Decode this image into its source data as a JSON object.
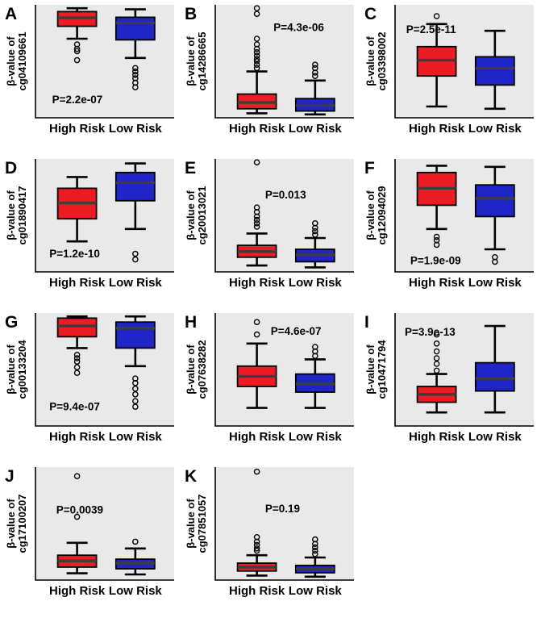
{
  "figure": {
    "background": "#ffffff",
    "panel_background": "#e9e9e9"
  },
  "colors": {
    "high_risk": "#EB1C24",
    "low_risk": "#2025C8",
    "median_line": "#3d3d3d",
    "box_stroke": "#000000",
    "text": "#000000"
  },
  "groups": [
    "High Risk",
    "Low Risk"
  ],
  "chart_data": [
    {
      "type": "boxplot",
      "letter": "A",
      "ylabel_line1": "β-value of",
      "ylabel_line2": "cg04109661",
      "p_label": "P=2.2e-07",
      "p_pos": {
        "x": 0.12,
        "y": 0.8
      },
      "ylim": [
        0,
        1
      ],
      "categories": [
        "High Risk",
        "Low Risk"
      ],
      "series": [
        {
          "name": "High Risk",
          "min": 0.7,
          "q1": 0.81,
          "median": 0.885,
          "q3": 0.94,
          "max": 0.97,
          "outliers": [
            0.65,
            0.61,
            0.59,
            0.51
          ]
        },
        {
          "name": "Low Risk",
          "min": 0.53,
          "q1": 0.69,
          "median": 0.84,
          "q3": 0.89,
          "max": 0.96,
          "outliers": [
            0.44,
            0.41,
            0.38,
            0.35,
            0.31,
            0.27
          ]
        }
      ]
    },
    {
      "type": "boxplot",
      "letter": "B",
      "ylabel_line1": "β-value of",
      "ylabel_line2": "cg14286665",
      "p_label": "P=4.3e-06",
      "p_pos": {
        "x": 0.42,
        "y": 0.16
      },
      "ylim": [
        0,
        1
      ],
      "categories": [
        "High Risk",
        "Low Risk"
      ],
      "series": [
        {
          "name": "High Risk",
          "min": 0.04,
          "q1": 0.08,
          "median": 0.135,
          "q3": 0.21,
          "max": 0.41,
          "outliers": [
            0.44,
            0.47,
            0.5,
            0.52,
            0.55,
            0.58,
            0.61,
            0.65,
            0.7,
            0.92,
            0.97
          ]
        },
        {
          "name": "Low Risk",
          "min": 0.03,
          "q1": 0.06,
          "median": 0.11,
          "q3": 0.17,
          "max": 0.33,
          "outliers": [
            0.37,
            0.4,
            0.44,
            0.47
          ]
        }
      ]
    },
    {
      "type": "boxplot",
      "letter": "C",
      "ylabel_line1": "β-value of",
      "ylabel_line2": "cg03398002",
      "p_label": "P=2.5e-11",
      "p_pos": {
        "x": 0.08,
        "y": 0.18
      },
      "ylim": [
        0,
        1
      ],
      "categories": [
        "High Risk",
        "Low Risk"
      ],
      "series": [
        {
          "name": "High Risk",
          "min": 0.1,
          "q1": 0.37,
          "median": 0.51,
          "q3": 0.63,
          "max": 0.83,
          "outliers": [
            0.9
          ]
        },
        {
          "name": "Low Risk",
          "min": 0.08,
          "q1": 0.29,
          "median": 0.44,
          "q3": 0.54,
          "max": 0.77,
          "outliers": []
        }
      ]
    },
    {
      "type": "boxplot",
      "letter": "D",
      "ylabel_line1": "β-value of",
      "ylabel_line2": "cg01890417",
      "p_label": "P=1.2e-10",
      "p_pos": {
        "x": 0.1,
        "y": 0.8
      },
      "ylim": [
        0,
        1
      ],
      "categories": [
        "High Risk",
        "Low Risk"
      ],
      "series": [
        {
          "name": "High Risk",
          "min": 0.27,
          "q1": 0.47,
          "median": 0.61,
          "q3": 0.74,
          "max": 0.84,
          "outliers": []
        },
        {
          "name": "Low Risk",
          "min": 0.38,
          "q1": 0.63,
          "median": 0.79,
          "q3": 0.88,
          "max": 0.96,
          "outliers": [
            0.16,
            0.11
          ]
        }
      ]
    },
    {
      "type": "boxplot",
      "letter": "E",
      "ylabel_line1": "β-value of",
      "ylabel_line2": "cg20013021",
      "p_label": "P=0.013",
      "p_pos": {
        "x": 0.36,
        "y": 0.28
      },
      "ylim": [
        0,
        1
      ],
      "categories": [
        "High Risk",
        "Low Risk"
      ],
      "series": [
        {
          "name": "High Risk",
          "min": 0.057,
          "q1": 0.13,
          "median": 0.18,
          "q3": 0.235,
          "max": 0.34,
          "outliers": [
            0.4,
            0.43,
            0.46,
            0.49,
            0.53,
            0.57,
            0.97
          ]
        },
        {
          "name": "Low Risk",
          "min": 0.04,
          "q1": 0.09,
          "median": 0.15,
          "q3": 0.2,
          "max": 0.3,
          "outliers": [
            0.33,
            0.36,
            0.39,
            0.43
          ]
        }
      ]
    },
    {
      "type": "boxplot",
      "letter": "F",
      "ylabel_line1": "β-value of",
      "ylabel_line2": "cg12094029",
      "p_label": "P=1.9e-09",
      "p_pos": {
        "x": 0.11,
        "y": 0.86
      },
      "ylim": [
        0,
        1
      ],
      "categories": [
        "High Risk",
        "Low Risk"
      ],
      "series": [
        {
          "name": "High Risk",
          "min": 0.38,
          "q1": 0.59,
          "median": 0.74,
          "q3": 0.88,
          "max": 0.94,
          "outliers": [
            0.31,
            0.28,
            0.24
          ]
        },
        {
          "name": "Low Risk",
          "min": 0.2,
          "q1": 0.49,
          "median": 0.65,
          "q3": 0.77,
          "max": 0.93,
          "outliers": [
            0.13,
            0.09
          ]
        }
      ]
    },
    {
      "type": "boxplot",
      "letter": "G",
      "ylabel_line1": "β-value of",
      "ylabel_line2": "cg00133204",
      "p_label": "P=9.4e-07",
      "p_pos": {
        "x": 0.1,
        "y": 0.79
      },
      "ylim": [
        0,
        1
      ],
      "categories": [
        "High Risk",
        "Low Risk"
      ],
      "series": [
        {
          "name": "High Risk",
          "min": 0.69,
          "q1": 0.79,
          "median": 0.885,
          "q3": 0.955,
          "max": 0.97,
          "outliers": [
            0.63,
            0.6,
            0.57,
            0.52,
            0.47
          ]
        },
        {
          "name": "Low Risk",
          "min": 0.53,
          "q1": 0.69,
          "median": 0.865,
          "q3": 0.92,
          "max": 0.97,
          "outliers": [
            0.42,
            0.38,
            0.33,
            0.28,
            0.22,
            0.17
          ]
        }
      ]
    },
    {
      "type": "boxplot",
      "letter": "H",
      "ylabel_line1": "β-value of",
      "ylabel_line2": "cg07638282",
      "p_label": "P=4.6e-07",
      "p_pos": {
        "x": 0.4,
        "y": 0.12
      },
      "ylim": [
        0,
        1
      ],
      "categories": [
        "High Risk",
        "Low Risk"
      ],
      "series": [
        {
          "name": "High Risk",
          "min": 0.16,
          "q1": 0.35,
          "median": 0.44,
          "q3": 0.53,
          "max": 0.73,
          "outliers": [
            0.81,
            0.92
          ]
        },
        {
          "name": "Low Risk",
          "min": 0.16,
          "q1": 0.3,
          "median": 0.37,
          "q3": 0.46,
          "max": 0.59,
          "outliers": [
            0.62,
            0.66,
            0.7
          ]
        }
      ]
    },
    {
      "type": "boxplot",
      "letter": "I",
      "ylabel_line1": "β-value of",
      "ylabel_line2": "cg10471794",
      "p_label": "P=3.9e-13",
      "p_pos": {
        "x": 0.07,
        "y": 0.13
      },
      "ylim": [
        0,
        1
      ],
      "categories": [
        "High Risk",
        "Low Risk"
      ],
      "series": [
        {
          "name": "High Risk",
          "min": 0.12,
          "q1": 0.21,
          "median": 0.28,
          "q3": 0.35,
          "max": 0.46,
          "outliers": [
            0.49,
            0.55,
            0.6,
            0.66,
            0.73,
            0.81
          ]
        },
        {
          "name": "Low Risk",
          "min": 0.12,
          "q1": 0.31,
          "median": 0.42,
          "q3": 0.56,
          "max": 0.885,
          "outliers": []
        }
      ]
    },
    {
      "type": "boxplot",
      "letter": "J",
      "ylabel_line1": "β-value of",
      "ylabel_line2": "cg17100207",
      "p_label": "P=0.0039",
      "p_pos": {
        "x": 0.15,
        "y": 0.34
      },
      "ylim": [
        0,
        1
      ],
      "categories": [
        "High Risk",
        "Low Risk"
      ],
      "series": [
        {
          "name": "High Risk",
          "min": 0.06,
          "q1": 0.115,
          "median": 0.17,
          "q3": 0.22,
          "max": 0.33,
          "outliers": [
            0.56,
            0.92
          ]
        },
        {
          "name": "Low Risk",
          "min": 0.05,
          "q1": 0.1,
          "median": 0.15,
          "q3": 0.185,
          "max": 0.28,
          "outliers": [
            0.34
          ]
        }
      ]
    },
    {
      "type": "boxplot",
      "letter": "K",
      "ylabel_line1": "β-value of",
      "ylabel_line2": "cg07851057",
      "p_label": "P=0.19",
      "p_pos": {
        "x": 0.36,
        "y": 0.33
      },
      "ylim": [
        0,
        1
      ],
      "categories": [
        "High Risk",
        "Low Risk"
      ],
      "series": [
        {
          "name": "High Risk",
          "min": 0.04,
          "q1": 0.08,
          "median": 0.115,
          "q3": 0.15,
          "max": 0.22,
          "outliers": [
            0.26,
            0.28,
            0.31,
            0.34,
            0.38,
            0.96
          ]
        },
        {
          "name": "Low Risk",
          "min": 0.03,
          "q1": 0.065,
          "median": 0.1,
          "q3": 0.13,
          "max": 0.2,
          "outliers": [
            0.23,
            0.26,
            0.29,
            0.32,
            0.36
          ]
        }
      ]
    }
  ]
}
